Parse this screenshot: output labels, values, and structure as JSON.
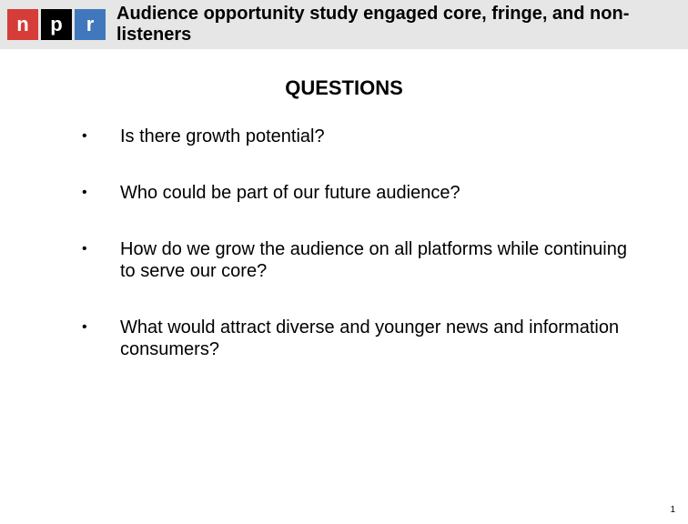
{
  "header": {
    "logo": {
      "letters": [
        "n",
        "p",
        "r"
      ],
      "box_colors": [
        "#d63c38",
        "#000000",
        "#4178bd"
      ],
      "text_color": "#ffffff",
      "box_size": 34,
      "font_size": 22
    },
    "title": "Audience opportunity study engaged core, fringe, and non-listeners",
    "title_fontsize": 20,
    "title_color": "#000000",
    "background_color": "#e6e6e6"
  },
  "content": {
    "heading": "QUESTIONS",
    "heading_fontsize": 22,
    "heading_color": "#000000",
    "bullets": [
      "Is there growth potential?",
      "Who could be part of our future audience?",
      "How do we grow the audience on all platforms while continuing to serve our core?",
      "What would attract diverse and younger news and information consumers?"
    ],
    "bullet_fontsize": 20,
    "bullet_color": "#000000",
    "bullet_char": "•"
  },
  "page_number": "1",
  "background_color": "#ffffff"
}
